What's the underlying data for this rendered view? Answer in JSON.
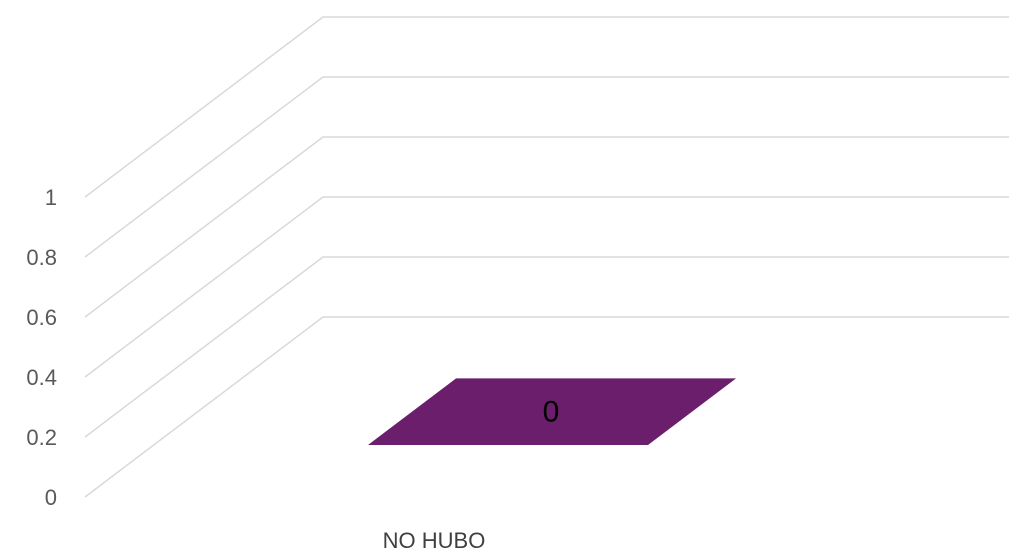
{
  "chart_data": {
    "type": "bar",
    "view": "3d-floor",
    "categories": [
      "NO HUBO"
    ],
    "series": [
      {
        "values": [
          0
        ]
      }
    ],
    "y_ticks": [
      "0",
      "0.2",
      "0.4",
      "0.6",
      "0.8",
      "1"
    ],
    "ylim": [
      0,
      1
    ],
    "grid": true,
    "legend": "none",
    "data_labels": [
      "0"
    ],
    "colors": {
      "bar": "#6b1e6b",
      "grid": "#d9d9d9",
      "tick_text": "#595959"
    }
  }
}
